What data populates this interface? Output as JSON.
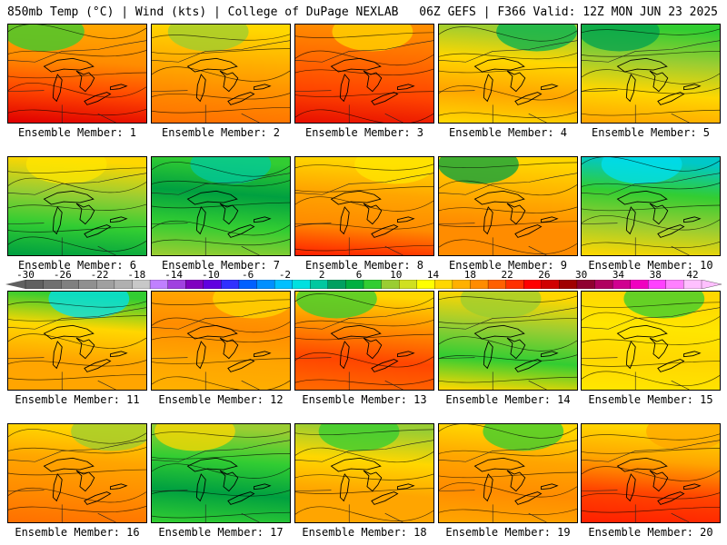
{
  "header": {
    "left": "850mb Temp (°C) | Wind (kts) | College of DuPage NEXLAB",
    "right": "06Z GEFS | F366 Valid: 12Z MON JUN 23 2025"
  },
  "panels": [
    {
      "label": "Ensemble Member: 1",
      "colors": [
        "#ffa500",
        "#ff8c00",
        "#ff4500",
        "#e00000"
      ],
      "north": "#32cd32"
    },
    {
      "label": "Ensemble Member: 2",
      "colors": [
        "#ffd700",
        "#ffb000",
        "#ff8c00",
        "#ff7000"
      ],
      "north": "#9acd32"
    },
    {
      "label": "Ensemble Member: 3",
      "colors": [
        "#ff8c00",
        "#ff6a00",
        "#ff4500",
        "#e81000"
      ],
      "north": "#ffd700"
    },
    {
      "label": "Ensemble Member: 4",
      "colors": [
        "#9acd32",
        "#ffd700",
        "#ffa500",
        "#ffd700"
      ],
      "north": "#00b050"
    },
    {
      "label": "Ensemble Member: 5",
      "colors": [
        "#32cd32",
        "#9acd32",
        "#ffd700",
        "#ffa500"
      ],
      "north": "#00a050"
    },
    {
      "label": "Ensemble Member: 6",
      "colors": [
        "#ffd700",
        "#9acd32",
        "#32cd32",
        "#00a040"
      ],
      "north": "#ffe600"
    },
    {
      "label": "Ensemble Member: 7",
      "colors": [
        "#32cd32",
        "#00a040",
        "#32cd32",
        "#9acd32"
      ],
      "north": "#00c8a0"
    },
    {
      "label": "Ensemble Member: 8",
      "colors": [
        "#ffd700",
        "#ffa500",
        "#ff8c00",
        "#ff2000"
      ],
      "north": "#ffe600"
    },
    {
      "label": "Ensemble Member: 9",
      "colors": [
        "#ffd700",
        "#ffb000",
        "#ff8c00",
        "#ff8c00"
      ],
      "north": "#00a040"
    },
    {
      "label": "Ensemble Member: 10",
      "colors": [
        "#00c8c8",
        "#32cd32",
        "#9acd32",
        "#ffd700"
      ],
      "north": "#00e0f0"
    },
    {
      "label": "Ensemble Member: 11",
      "colors": [
        "#32cd32",
        "#ffd700",
        "#ffa500",
        "#ffa500"
      ],
      "north": "#00e0f0"
    },
    {
      "label": "Ensemble Member: 12",
      "colors": [
        "#ffa500",
        "#ff8c00",
        "#ffa500",
        "#ffb000"
      ],
      "north": "#ffd700"
    },
    {
      "label": "Ensemble Member: 13",
      "colors": [
        "#ffd700",
        "#ff8c00",
        "#ff4500",
        "#ff6a00"
      ],
      "north": "#32cd32"
    },
    {
      "label": "Ensemble Member: 14",
      "colors": [
        "#ffd700",
        "#9acd32",
        "#32cd32",
        "#ffd700"
      ],
      "north": "#9acd32"
    },
    {
      "label": "Ensemble Member: 15",
      "colors": [
        "#ffd700",
        "#ffe600",
        "#ffd700",
        "#ffe600"
      ],
      "north": "#32cd32"
    },
    {
      "label": "Ensemble Member: 16",
      "colors": [
        "#ffd700",
        "#ffa500",
        "#ff8c00",
        "#ff7000"
      ],
      "north": "#9acd32"
    },
    {
      "label": "Ensemble Member: 17",
      "colors": [
        "#9acd32",
        "#32cd32",
        "#00a040",
        "#32cd32"
      ],
      "north": "#ffd700"
    },
    {
      "label": "Ensemble Member: 18",
      "colors": [
        "#9acd32",
        "#ffd700",
        "#ffa500",
        "#ffa500"
      ],
      "north": "#32cd32"
    },
    {
      "label": "Ensemble Member: 19",
      "colors": [
        "#ffd700",
        "#ffa500",
        "#ff8c00",
        "#ffa500"
      ],
      "north": "#32cd32"
    },
    {
      "label": "Ensemble Member: 20",
      "colors": [
        "#ffd700",
        "#ffa500",
        "#ff4500",
        "#ff2000"
      ],
      "north": "#ffa500"
    }
  ],
  "colorbar": {
    "labels": [
      "-30",
      "-26",
      "-22",
      "-18",
      "-14",
      "-10",
      "-6",
      "-2",
      "2",
      "6",
      "10",
      "14",
      "18",
      "22",
      "26",
      "30",
      "34",
      "38",
      "42"
    ],
    "colors": [
      "#606060",
      "#707070",
      "#808080",
      "#909090",
      "#a0a0a0",
      "#b0b0b0",
      "#c8c8c8",
      "#c080ff",
      "#a040e0",
      "#8000c0",
      "#6000e0",
      "#3030ff",
      "#0060ff",
      "#0090ff",
      "#00c0ff",
      "#00e0e0",
      "#00c8a0",
      "#00a060",
      "#00b040",
      "#32cd32",
      "#9acd32",
      "#d0e020",
      "#ffff00",
      "#ffd700",
      "#ffb000",
      "#ff8c00",
      "#ff6000",
      "#ff3000",
      "#ff0000",
      "#d00000",
      "#a00000",
      "#900030",
      "#b00060",
      "#d00090",
      "#f000c0",
      "#ff40ff",
      "#ff80ff",
      "#ffc0ff"
    ]
  }
}
